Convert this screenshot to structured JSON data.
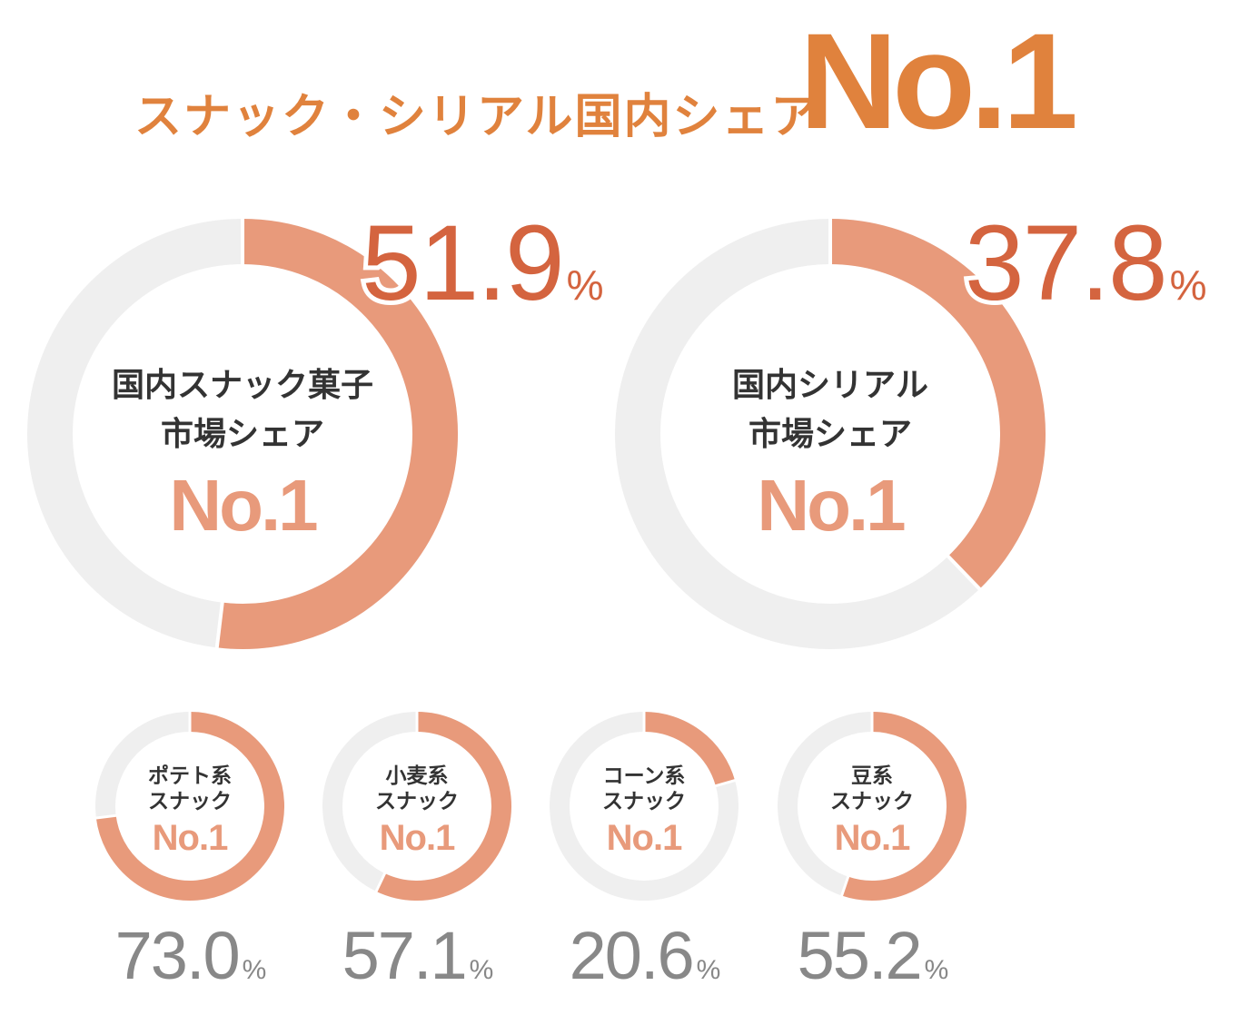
{
  "headline": {
    "subtitle": "スナック・シリアル国内シェア",
    "rank": "No.1"
  },
  "colors": {
    "accent_text": "#e0823d",
    "arc_fill": "#e89a7b",
    "ring_bg": "#efefef",
    "value_big": "#d4643f",
    "value_small": "#888888",
    "center_label": "#333333"
  },
  "chart_data": [
    {
      "type": "pie",
      "variant": "donut",
      "title": "国内スナック菓子市場シェア",
      "label_lines": [
        "国内スナック菓子",
        "市場シェア"
      ],
      "rank": "No.1",
      "value": 51.9,
      "value_text": "51.9",
      "unit": "%"
    },
    {
      "type": "pie",
      "variant": "donut",
      "title": "国内シリアル市場シェア",
      "label_lines": [
        "国内シリアル",
        "市場シェア"
      ],
      "rank": "No.1",
      "value": 37.8,
      "value_text": "37.8",
      "unit": "%"
    },
    {
      "type": "pie",
      "variant": "donut",
      "title": "ポテト系スナック",
      "label_lines": [
        "ポテト系",
        "スナック"
      ],
      "rank": "No.1",
      "value": 73.0,
      "value_text": "73.0",
      "unit": "%"
    },
    {
      "type": "pie",
      "variant": "donut",
      "title": "小麦系スナック",
      "label_lines": [
        "小麦系",
        "スナック"
      ],
      "rank": "No.1",
      "value": 57.1,
      "value_text": "57.1",
      "unit": "%"
    },
    {
      "type": "pie",
      "variant": "donut",
      "title": "コーン系スナック",
      "label_lines": [
        "コーン系",
        "スナック"
      ],
      "rank": "No.1",
      "value": 20.6,
      "value_text": "20.6",
      "unit": "%"
    },
    {
      "type": "pie",
      "variant": "donut",
      "title": "豆系スナック",
      "label_lines": [
        "豆系",
        "スナック"
      ],
      "rank": "No.1",
      "value": 55.2,
      "value_text": "55.2",
      "unit": "%"
    }
  ]
}
